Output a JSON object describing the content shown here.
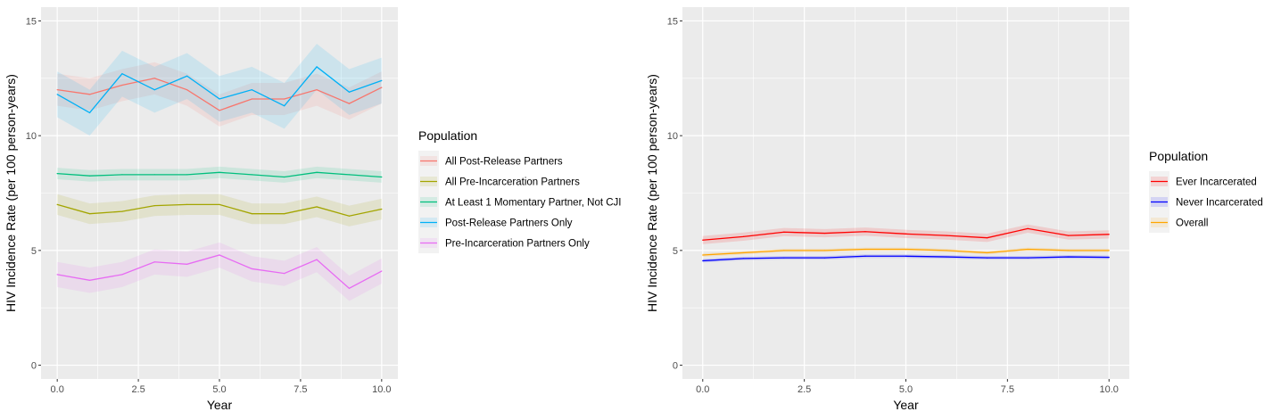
{
  "chart_data": [
    {
      "type": "line",
      "xlabel": "Year",
      "ylabel": "HIV Incidence Rate (per 100 person-years)",
      "xlim": [
        -0.5,
        10.5
      ],
      "ylim": [
        -0.6,
        15.6
      ],
      "xticks": [
        0,
        2.5,
        5,
        7.5,
        10
      ],
      "xtick_labels": [
        "0.0",
        "2.5",
        "5.0",
        "7.5",
        "10.0"
      ],
      "yticks": [
        0,
        5,
        10,
        15
      ],
      "ytick_labels": [
        "0",
        "5",
        "10",
        "15"
      ],
      "grid": true,
      "legend": {
        "title": "Population",
        "placement": "right"
      },
      "x": [
        0,
        1,
        2,
        3,
        4,
        5,
        6,
        7,
        8,
        9,
        10
      ],
      "series": [
        {
          "name": "All Post-Release Partners",
          "color": "#F8766D",
          "values": [
            12.0,
            11.8,
            12.2,
            12.5,
            12.0,
            11.1,
            11.6,
            11.6,
            12.0,
            11.4,
            12.1
          ],
          "band": 0.7
        },
        {
          "name": "All Pre-Incarceration Partners",
          "color": "#A3A500",
          "values": [
            7.0,
            6.6,
            6.7,
            6.95,
            7.0,
            7.0,
            6.6,
            6.6,
            6.9,
            6.5,
            6.8
          ],
          "band": 0.45
        },
        {
          "name": "At Least 1 Momentary Partner, Not CJI",
          "color": "#00BF7D",
          "values": [
            8.35,
            8.25,
            8.3,
            8.3,
            8.3,
            8.4,
            8.3,
            8.2,
            8.4,
            8.3,
            8.2
          ],
          "band": 0.25
        },
        {
          "name": "Post-Release Partners Only",
          "color": "#00B0F6",
          "values": [
            11.8,
            11.0,
            12.7,
            12.0,
            12.6,
            11.6,
            12.0,
            11.3,
            13.0,
            11.9,
            12.4
          ],
          "band": 1.0
        },
        {
          "name": "Pre-Incarceration Partners Only",
          "color": "#E76BF3",
          "values": [
            3.95,
            3.7,
            3.95,
            4.5,
            4.4,
            4.8,
            4.2,
            4.0,
            4.6,
            3.35,
            4.1
          ],
          "band": 0.55
        }
      ]
    },
    {
      "type": "line",
      "xlabel": "Year",
      "ylabel": "HIV Incidence Rate (per 100 person-years)",
      "xlim": [
        -0.5,
        10.5
      ],
      "ylim": [
        -0.6,
        15.6
      ],
      "xticks": [
        0,
        2.5,
        5,
        7.5,
        10
      ],
      "xtick_labels": [
        "0.0",
        "2.5",
        "5.0",
        "7.5",
        "10.0"
      ],
      "yticks": [
        0,
        5,
        10,
        15
      ],
      "ytick_labels": [
        "0",
        "5",
        "10",
        "15"
      ],
      "grid": true,
      "legend": {
        "title": "Population",
        "placement": "right"
      },
      "x": [
        0,
        1,
        2,
        3,
        4,
        5,
        6,
        7,
        8,
        9,
        10
      ],
      "series": [
        {
          "name": "Ever Incarcerated",
          "color": "#FF0000",
          "values": [
            5.45,
            5.6,
            5.8,
            5.75,
            5.82,
            5.72,
            5.65,
            5.55,
            5.95,
            5.65,
            5.7
          ],
          "band": 0.18
        },
        {
          "name": "Never Incarcerated",
          "color": "#0000FF",
          "values": [
            4.55,
            4.65,
            4.68,
            4.68,
            4.75,
            4.75,
            4.72,
            4.68,
            4.68,
            4.72,
            4.7
          ],
          "band": 0.08
        },
        {
          "name": "Overall",
          "color": "#FFA500",
          "values": [
            4.8,
            4.9,
            5.0,
            5.0,
            5.05,
            5.05,
            5.0,
            4.9,
            5.05,
            5.0,
            5.0
          ],
          "band": 0.08
        }
      ]
    }
  ]
}
